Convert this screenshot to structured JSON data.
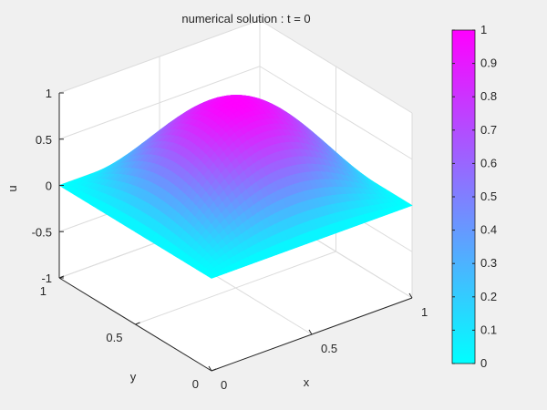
{
  "chart_data": {
    "type": "surface",
    "title": "numerical solution : t = 0",
    "xlabel": "x",
    "ylabel": "y",
    "zlabel": "u",
    "function": "u = sin(pi*x) * sin(pi*y)",
    "xlim": [
      0,
      1
    ],
    "ylim": [
      0,
      1
    ],
    "zlim": [
      -1,
      1
    ],
    "xticks": [
      "0",
      "0.5",
      "1"
    ],
    "yticks": [
      "0",
      "0.5",
      "1"
    ],
    "zticks": [
      "-1",
      "-0.5",
      "0",
      "0.5",
      "1"
    ],
    "grid": true,
    "colormap": "cool",
    "colormap_low": "#00ffff",
    "colormap_high": "#ff00ff",
    "colorbar": {
      "range": [
        0,
        1
      ],
      "ticks": [
        "0",
        "0.1",
        "0.2",
        "0.3",
        "0.4",
        "0.5",
        "0.6",
        "0.7",
        "0.8",
        "0.9",
        "1"
      ],
      "placement": "right"
    }
  }
}
